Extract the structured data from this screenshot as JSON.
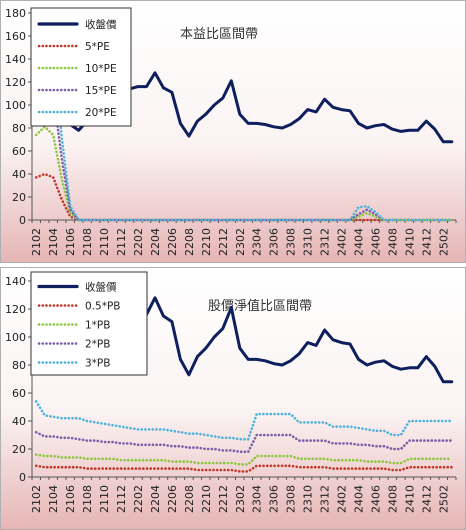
{
  "chart_data": [
    {
      "type": "line",
      "title": "本益比區間帶",
      "categories": [
        "2102",
        "2103",
        "2104",
        "2105",
        "2106",
        "2107",
        "2108",
        "2109",
        "2110",
        "2111",
        "2112",
        "2201",
        "2202",
        "2203",
        "2204",
        "2205",
        "2206",
        "2207",
        "2208",
        "2209",
        "2210",
        "2211",
        "2212",
        "2301",
        "2302",
        "2303",
        "2304",
        "2305",
        "2306",
        "2307",
        "2308",
        "2309",
        "2310",
        "2311",
        "2312",
        "2401",
        "2402",
        "2403",
        "2404",
        "2405",
        "2406",
        "2407",
        "2408",
        "2409",
        "2410",
        "2411",
        "2412",
        "2501",
        "2502",
        "2503"
      ],
      "tick_labels": [
        "2102",
        "2104",
        "2106",
        "2108",
        "2110",
        "2112",
        "2202",
        "2204",
        "2206",
        "2208",
        "2210",
        "2212",
        "2302",
        "2304",
        "2306",
        "2308",
        "2310",
        "2312",
        "2402",
        "2404",
        "2406",
        "2408",
        "2410",
        "2412",
        "2502"
      ],
      "ylim": [
        0,
        180
      ],
      "yticks": [
        0,
        20,
        40,
        60,
        80,
        100,
        120,
        140,
        160,
        180
      ],
      "grid": false,
      "legend_position": "top-left",
      "series": [
        {
          "name": "收盤價",
          "color": "#0d1f5c",
          "style": "solid",
          "values": [
            87,
            95,
            97,
            91,
            83,
            78,
            86,
            95,
            112,
            116,
            119,
            114,
            116,
            116,
            128,
            115,
            111,
            84,
            73,
            86,
            92,
            100,
            106,
            121,
            92,
            84,
            84,
            83,
            81,
            80,
            83,
            88,
            96,
            94,
            105,
            98,
            96,
            95,
            84,
            80,
            82,
            83,
            79,
            77,
            78,
            78,
            86,
            79,
            68,
            68
          ]
        },
        {
          "name": "5*PE",
          "color": "#c0392b",
          "style": "dotted",
          "values": [
            37,
            40,
            37,
            18,
            3,
            0,
            0,
            0,
            0,
            0,
            0,
            0,
            0,
            0,
            0,
            0,
            0,
            0,
            0,
            0,
            0,
            0,
            0,
            0,
            0,
            0,
            0,
            0,
            0,
            0,
            0,
            0,
            0,
            0,
            0,
            0,
            0,
            0,
            0,
            0,
            0,
            0,
            0,
            0,
            0,
            0,
            0,
            0,
            0,
            0
          ]
        },
        {
          "name": "10*PE",
          "color": "#8dc63f",
          "style": "dotted",
          "values": [
            74,
            81,
            74,
            36,
            6,
            0,
            0,
            0,
            0,
            0,
            0,
            0,
            0,
            0,
            0,
            0,
            0,
            0,
            0,
            0,
            0,
            0,
            0,
            0,
            0,
            0,
            0,
            0,
            0,
            0,
            0,
            0,
            0,
            0,
            0,
            0,
            0,
            0,
            3,
            6,
            3,
            0,
            0,
            0,
            0,
            0,
            0,
            0,
            0,
            0
          ]
        },
        {
          "name": "15*PE",
          "color": "#7b5ea7",
          "style": "dotted",
          "values": [
            111,
            121,
            111,
            54,
            9,
            0,
            0,
            0,
            0,
            0,
            0,
            0,
            0,
            0,
            0,
            0,
            0,
            0,
            0,
            0,
            0,
            0,
            0,
            0,
            0,
            0,
            0,
            0,
            0,
            0,
            0,
            0,
            0,
            0,
            0,
            0,
            0,
            0,
            5,
            9,
            5,
            0,
            0,
            0,
            0,
            0,
            0,
            0,
            0,
            0
          ]
        },
        {
          "name": "20*PE",
          "color": "#4fb3d9",
          "style": "dotted",
          "values": [
            148,
            162,
            148,
            72,
            12,
            0,
            0,
            0,
            0,
            0,
            0,
            0,
            0,
            0,
            0,
            0,
            0,
            0,
            0,
            0,
            0,
            0,
            0,
            0,
            0,
            0,
            0,
            0,
            0,
            0,
            0,
            0,
            0,
            0,
            0,
            0,
            0,
            0,
            11,
            12,
            7,
            0,
            0,
            0,
            0,
            0,
            0,
            0,
            0,
            0
          ]
        }
      ]
    },
    {
      "type": "line",
      "title": "股價淨值比區間帶",
      "categories": [
        "2102",
        "2103",
        "2104",
        "2105",
        "2106",
        "2107",
        "2108",
        "2109",
        "2110",
        "2111",
        "2112",
        "2201",
        "2202",
        "2203",
        "2204",
        "2205",
        "2206",
        "2207",
        "2208",
        "2209",
        "2210",
        "2211",
        "2212",
        "2301",
        "2302",
        "2303",
        "2304",
        "2305",
        "2306",
        "2307",
        "2308",
        "2309",
        "2310",
        "2311",
        "2312",
        "2401",
        "2402",
        "2403",
        "2404",
        "2405",
        "2406",
        "2407",
        "2408",
        "2409",
        "2410",
        "2411",
        "2412",
        "2501",
        "2502",
        "2503"
      ],
      "tick_labels": [
        "2102",
        "2104",
        "2106",
        "2108",
        "2110",
        "2112",
        "2202",
        "2204",
        "2206",
        "2208",
        "2210",
        "2212",
        "2302",
        "2304",
        "2306",
        "2308",
        "2310",
        "2312",
        "2402",
        "2404",
        "2406",
        "2408",
        "2410",
        "2412",
        "2502"
      ],
      "ylim": [
        0,
        140
      ],
      "yticks": [
        0,
        20,
        40,
        60,
        80,
        100,
        120,
        140
      ],
      "grid": false,
      "legend_position": "top-left",
      "series": [
        {
          "name": "收盤價",
          "color": "#0d1f5c",
          "style": "solid",
          "values": [
            87,
            95,
            97,
            91,
            83,
            78,
            86,
            95,
            112,
            116,
            119,
            114,
            116,
            116,
            128,
            115,
            111,
            84,
            73,
            86,
            92,
            100,
            106,
            121,
            92,
            84,
            84,
            83,
            81,
            80,
            83,
            88,
            96,
            94,
            105,
            98,
            96,
            95,
            84,
            80,
            82,
            83,
            79,
            77,
            78,
            78,
            86,
            79,
            68,
            68
          ]
        },
        {
          "name": "0.5*PB",
          "color": "#c0392b",
          "style": "dotted",
          "values": [
            8,
            7,
            7,
            7,
            7,
            7,
            6,
            6,
            6,
            6,
            6,
            6,
            6,
            6,
            6,
            6,
            6,
            6,
            6,
            5,
            5,
            5,
            5,
            5,
            4,
            4,
            8,
            8,
            8,
            8,
            8,
            7,
            7,
            7,
            7,
            6,
            6,
            6,
            6,
            6,
            6,
            6,
            5,
            5,
            7,
            7,
            7,
            7,
            7,
            7
          ]
        },
        {
          "name": "1*PB",
          "color": "#8dc63f",
          "style": "dotted",
          "values": [
            16,
            15,
            15,
            14,
            14,
            14,
            13,
            13,
            13,
            13,
            12,
            12,
            12,
            12,
            12,
            12,
            11,
            11,
            11,
            10,
            10,
            10,
            10,
            10,
            9,
            9,
            15,
            15,
            15,
            15,
            15,
            13,
            13,
            13,
            13,
            12,
            12,
            12,
            12,
            11,
            11,
            11,
            10,
            10,
            13,
            13,
            13,
            13,
            13,
            13
          ]
        },
        {
          "name": "2*PB",
          "color": "#7b5ea7",
          "style": "dotted",
          "values": [
            32,
            29,
            29,
            28,
            28,
            27,
            26,
            26,
            25,
            25,
            24,
            24,
            23,
            23,
            23,
            23,
            22,
            22,
            21,
            21,
            20,
            20,
            19,
            19,
            18,
            18,
            30,
            30,
            30,
            30,
            30,
            26,
            26,
            26,
            26,
            24,
            24,
            24,
            23,
            23,
            22,
            22,
            20,
            20,
            26,
            26,
            26,
            26,
            26,
            26
          ]
        },
        {
          "name": "3*PB",
          "color": "#4fb3d9",
          "style": "dotted",
          "values": [
            54,
            44,
            43,
            42,
            42,
            42,
            40,
            39,
            38,
            37,
            36,
            35,
            34,
            34,
            34,
            34,
            33,
            32,
            31,
            31,
            30,
            29,
            28,
            28,
            27,
            27,
            45,
            45,
            45,
            45,
            45,
            39,
            39,
            39,
            39,
            36,
            36,
            36,
            35,
            34,
            33,
            33,
            30,
            30,
            40,
            40,
            40,
            40,
            40,
            40
          ]
        }
      ]
    }
  ]
}
